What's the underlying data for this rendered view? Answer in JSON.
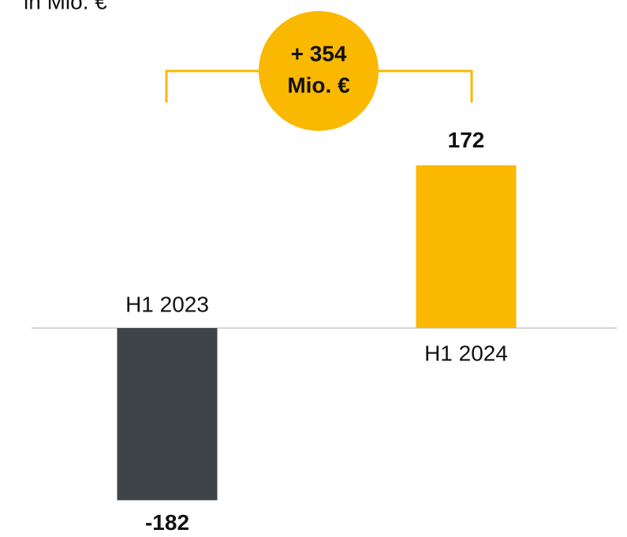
{
  "chart_data": {
    "type": "bar",
    "title": "in Mio. €",
    "categories": [
      "H1 2023",
      "H1 2024"
    ],
    "values": [
      -182,
      172
    ],
    "colors": [
      "#3f4448",
      "#fbb800"
    ],
    "ylim": [
      -220,
      200
    ],
    "annotation": [
      "+ 354",
      "Mio. €"
    ]
  }
}
